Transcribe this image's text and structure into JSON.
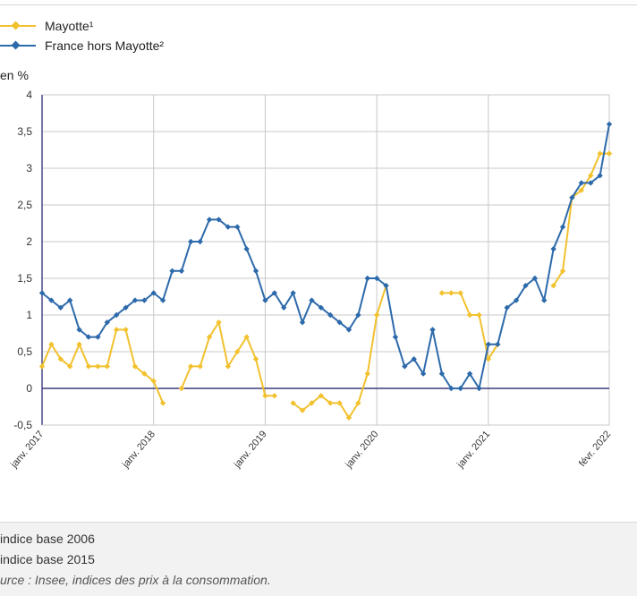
{
  "legend": {
    "items": [
      {
        "label": "Mayotte¹",
        "color": "#f2c12e"
      },
      {
        "label": "France hors Mayotte²",
        "color": "#2d6aab"
      }
    ]
  },
  "unit_label": "en %",
  "notes": {
    "note1": "indice base 2006",
    "note2": "indice base 2015",
    "source": "urce : Insee, indices des prix à la consommation."
  },
  "chart_data": {
    "type": "line",
    "x_tick_labels": [
      "janv. 2017",
      "janv. 2018",
      "janv. 2019",
      "janv. 2020",
      "janv. 2021",
      "févr. 2022"
    ],
    "x_tick_months": [
      0,
      12,
      24,
      36,
      48,
      61
    ],
    "y_tick_labels": [
      "-0,5",
      "0",
      "0,5",
      "1",
      "1,5",
      "2",
      "2,5",
      "3",
      "3,5",
      "4"
    ],
    "ylim": [
      -0.5,
      4
    ],
    "grid": true,
    "legend_position": "top-left",
    "series": [
      {
        "name": "Mayotte¹",
        "color": "#f2c12e",
        "values": [
          0.3,
          0.6,
          0.4,
          0.3,
          0.6,
          0.3,
          0.3,
          0.3,
          0.8,
          0.8,
          0.3,
          0.2,
          0.1,
          -0.2,
          null,
          0.0,
          0.3,
          0.3,
          0.7,
          0.9,
          0.3,
          0.5,
          0.7,
          0.4,
          -0.1,
          -0.1,
          null,
          -0.2,
          -0.3,
          -0.2,
          -0.1,
          -0.2,
          -0.2,
          -0.4,
          -0.2,
          0.2,
          1.0,
          1.4,
          null,
          null,
          null,
          null,
          null,
          1.3,
          1.3,
          1.3,
          1.0,
          1.0,
          0.4,
          0.6,
          null,
          null,
          null,
          null,
          null,
          1.4,
          1.6,
          2.6,
          2.7,
          2.9,
          3.2,
          3.2
        ]
      },
      {
        "name": "France hors Mayotte²",
        "color": "#2d6aab",
        "values": [
          1.3,
          1.2,
          1.1,
          1.2,
          0.8,
          0.7,
          0.7,
          0.9,
          1.0,
          1.1,
          1.2,
          1.2,
          1.3,
          1.2,
          1.6,
          1.6,
          2.0,
          2.0,
          2.3,
          2.3,
          2.2,
          2.2,
          1.9,
          1.6,
          1.2,
          1.3,
          1.1,
          1.3,
          0.9,
          1.2,
          1.1,
          1.0,
          0.9,
          0.8,
          1.0,
          1.5,
          1.5,
          1.4,
          0.7,
          0.3,
          0.4,
          0.2,
          0.8,
          0.2,
          0.0,
          0.0,
          0.2,
          0.0,
          0.6,
          0.6,
          1.1,
          1.2,
          1.4,
          1.5,
          1.2,
          1.9,
          2.2,
          2.6,
          2.8,
          2.8,
          2.9,
          3.6
        ]
      }
    ]
  }
}
